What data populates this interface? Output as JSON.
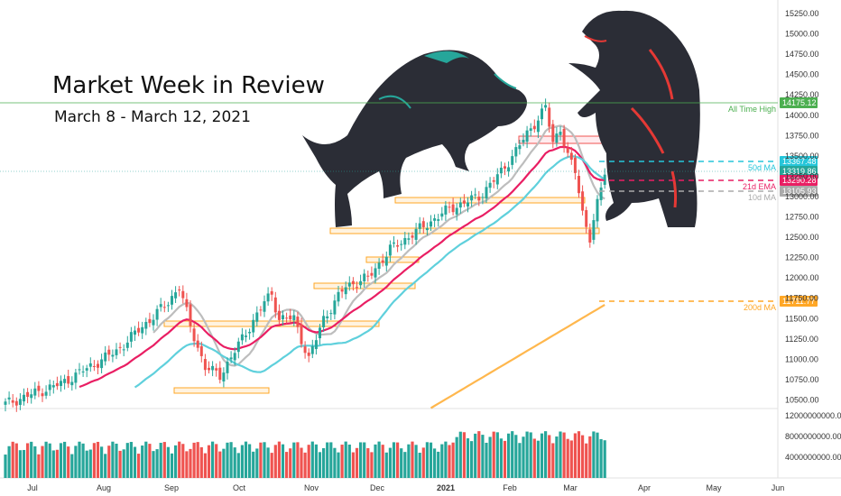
{
  "header": {
    "title": "Market Week in Review",
    "subtitle": "March 8 - March 12, 2021"
  },
  "chart_data": {
    "type": "candlestick",
    "price_axis": {
      "ylim": [
        10350,
        15400
      ],
      "ticks": [
        "15250.00",
        "15000.00",
        "14750.00",
        "14500.00",
        "14250.00",
        "14000.00",
        "13750.00",
        "13500.00",
        "13250.00",
        "13000.00",
        "12750.00",
        "12500.00",
        "12250.00",
        "12000.00",
        "11750.00",
        "11500.00",
        "11250.00",
        "11000.00",
        "10750.00",
        "10500.00"
      ]
    },
    "volume_axis": {
      "ylim": [
        0,
        13000000000
      ],
      "ticks": [
        "12000000000.00",
        "8000000000.00",
        "4000000000.00"
      ]
    },
    "time_axis": {
      "labels": [
        "Jul",
        "Aug",
        "Sep",
        "Oct",
        "Nov",
        "Dec",
        "2021",
        "Feb",
        "Mar",
        "Apr",
        "May",
        "Jun"
      ]
    },
    "levels": [
      {
        "name": "All Time High",
        "value": 14175.12,
        "label": "14175.12",
        "color": "#4caf50"
      },
      {
        "name": "50d MA",
        "value": 13367.48,
        "label": "13367.48",
        "color": "#26c6da"
      },
      {
        "name": "",
        "value": 13319.86,
        "label": "13319.86",
        "color": "#26a69a"
      },
      {
        "name": "21d EMA",
        "value": 13290.28,
        "label": "13290.28",
        "color": "#e91e63"
      },
      {
        "name": "10d MA",
        "value": 13105.93,
        "label": "13105.93",
        "color": "#aaaaaa"
      },
      {
        "name": "200d MA",
        "value": 11711.77,
        "label": "11711.77",
        "color": "#ffa726"
      }
    ],
    "colors": {
      "up": "#26a69a",
      "down": "#ef5350",
      "ma10": "#bdbdbd",
      "ema21": "#e91e63",
      "ma50": "#5fd0dc",
      "ma200": "#ffb74d",
      "zone_fill": "#fff3e0",
      "zone_stroke": "#ffa726",
      "resistance_fill": "#ffebee",
      "resistance_stroke": "#ef5350"
    }
  }
}
